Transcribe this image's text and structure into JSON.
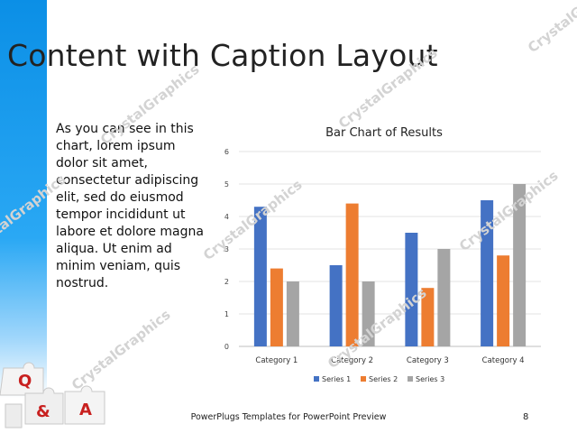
{
  "slide": {
    "title": "Content with Caption Layout",
    "caption": "As you can see in this chart, lorem ipsum dolor sit amet, consectetur adipiscing elit, sed do eiusmod tempor incididunt ut labore et dolore magna aliqua. Ut enim ad minim veniam, quis nostrud.",
    "watermark": "CrystalGraphics",
    "footer": "PowerPlugs Templates for PowerPoint Preview",
    "page_number": "8",
    "qa_graphic_letters": [
      "Q",
      "&",
      "A"
    ]
  },
  "colors": {
    "band": "#1a9be9",
    "series1": "#4472c4",
    "series2": "#ed7d31",
    "series3": "#a5a5a5",
    "qa_red": "#c8201f"
  },
  "chart_data": {
    "type": "bar",
    "title": "Bar Chart of Results",
    "categories": [
      "Category 1",
      "Category 2",
      "Category 3",
      "Category 4"
    ],
    "series": [
      {
        "name": "Series 1",
        "values": [
          4.3,
          2.5,
          3.5,
          4.5
        ]
      },
      {
        "name": "Series 2",
        "values": [
          2.4,
          4.4,
          1.8,
          2.8
        ]
      },
      {
        "name": "Series 3",
        "values": [
          2,
          2,
          3,
          5
        ]
      }
    ],
    "ylim": [
      0,
      6
    ],
    "yticks": [
      0,
      1,
      2,
      3,
      4,
      5,
      6
    ],
    "grid": true,
    "legend": "bottom",
    "xlabel": "",
    "ylabel": ""
  }
}
